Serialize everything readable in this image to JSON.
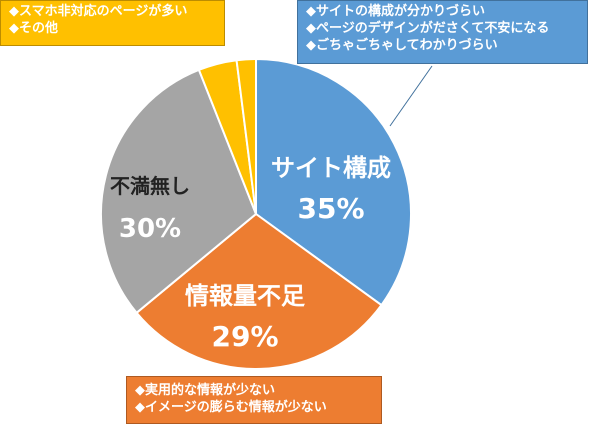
{
  "chart_data": {
    "type": "pie",
    "slices": [
      {
        "label": "サイト構成",
        "value": 35,
        "value_text": "35%",
        "color": "#5b9bd5"
      },
      {
        "label": "情報量不足",
        "value": 29,
        "value_text": "29%",
        "color": "#ed7d31"
      },
      {
        "label": "不満無し",
        "value": 30,
        "value_text": "30%",
        "color": "#a5a5a5"
      },
      {
        "label": "",
        "value": 4,
        "value_text": "",
        "color": "#ffc000"
      },
      {
        "label": "",
        "value": 2,
        "value_text": "",
        "color": "#ffc000"
      }
    ]
  },
  "callouts": {
    "blue": [
      "◆サイトの構成が分かりづらい",
      "◆ページのデザインがださくて不安になる",
      "◆ごちゃごちゃしてわかりづらい"
    ],
    "yellow": [
      "◆スマホ非対応のページが多い",
      "◆その他"
    ],
    "orange": [
      "◆実用的な情報が少ない",
      "◆イメージの膨らむ情報が少ない"
    ]
  }
}
